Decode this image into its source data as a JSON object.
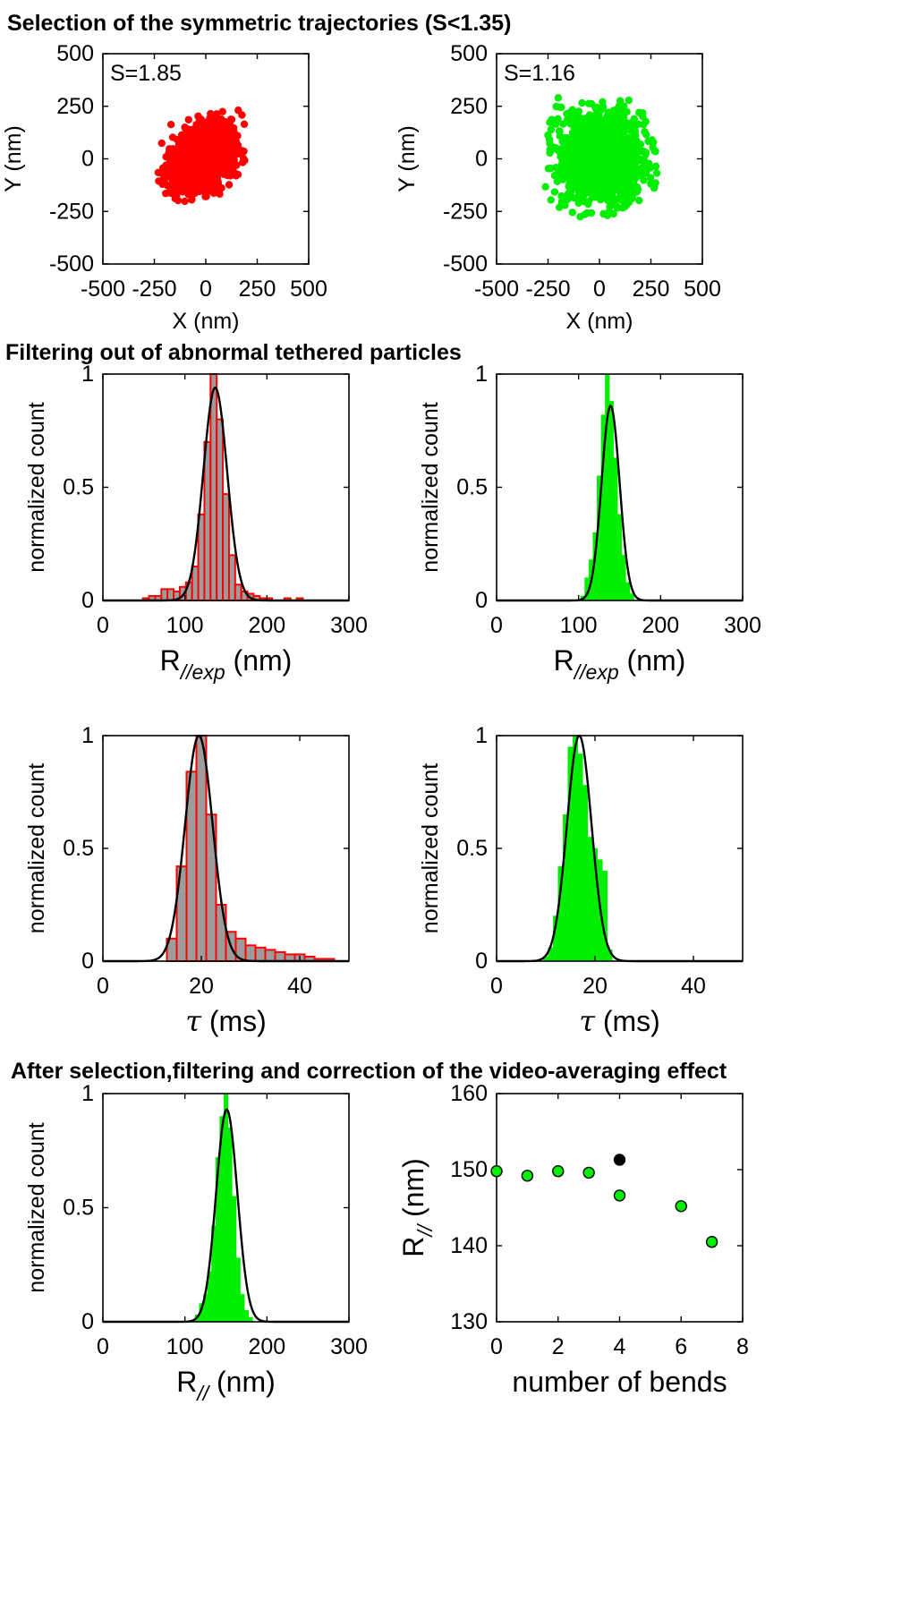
{
  "sections": {
    "s1": "Selection of the symmetric trajectories (S<1.35)",
    "s2": "Filtering out of abnormal tethered particles",
    "s3": "After selection,filtering and correction of the video-averaging effect"
  },
  "colors": {
    "red": "#ff0000",
    "green": "#00ee00",
    "gray": "#9c9c9c",
    "black": "#000000"
  },
  "chart_data": [
    {
      "id": "scatter_red",
      "type": "scatter",
      "annotation": "S=1.85",
      "xlabel": "X (nm)",
      "ylabel": "Y (nm)",
      "xlim": [
        -500,
        500
      ],
      "ylim": [
        -500,
        500
      ],
      "xticks": [
        -500,
        -250,
        0,
        250,
        500
      ],
      "yticks": [
        -500,
        -250,
        0,
        250,
        500
      ],
      "cloud": {
        "center": [
          -20,
          5
        ],
        "x_range": [
          -240,
          190
        ],
        "y_range": [
          -230,
          240
        ],
        "tilt_deg": 40,
        "color": "#ff0000"
      }
    },
    {
      "id": "scatter_green",
      "type": "scatter",
      "annotation": "S=1.16",
      "xlabel": "X (nm)",
      "ylabel": "Y (nm)",
      "xlim": [
        -500,
        500
      ],
      "ylim": [
        -500,
        500
      ],
      "xticks": [
        -500,
        -250,
        0,
        250,
        500
      ],
      "yticks": [
        -500,
        -250,
        0,
        250,
        500
      ],
      "cloud": {
        "center": [
          10,
          10
        ],
        "x_range": [
          -260,
          290
        ],
        "y_range": [
          -260,
          320
        ],
        "tilt_deg": 0,
        "color": "#00ee00"
      }
    },
    {
      "id": "hist_r_red",
      "type": "bar",
      "xlabel": "R//exp (nm)",
      "ylabel": "normalized count",
      "xlim": [
        0,
        300
      ],
      "ylim": [
        0,
        1
      ],
      "xticks": [
        0,
        100,
        200,
        300
      ],
      "yticks": [
        0,
        0.5,
        1
      ],
      "bar_style": "red-edge-gray-fill",
      "bin_width": 7.5,
      "bins": [
        [
          52.5,
          0.01
        ],
        [
          60,
          0.02
        ],
        [
          67.5,
          0.02
        ],
        [
          75,
          0.05
        ],
        [
          82.5,
          0.05
        ],
        [
          90,
          0.04
        ],
        [
          97.5,
          0.06
        ],
        [
          105,
          0.08
        ],
        [
          112.5,
          0.15
        ],
        [
          120,
          0.38
        ],
        [
          127.5,
          0.7
        ],
        [
          135,
          1.0
        ],
        [
          142.5,
          0.8
        ],
        [
          150,
          0.47
        ],
        [
          157.5,
          0.2
        ],
        [
          165,
          0.07
        ],
        [
          172.5,
          0.04
        ],
        [
          180,
          0.03
        ],
        [
          187.5,
          0.02
        ],
        [
          195,
          0.01
        ],
        [
          202.5,
          0.01
        ],
        [
          225,
          0.01
        ],
        [
          240,
          0.01
        ]
      ],
      "fit": {
        "mu": 137,
        "sigma": 14.5,
        "amp": 0.94
      }
    },
    {
      "id": "hist_r_green",
      "type": "bar",
      "xlabel": "R//exp (nm)",
      "ylabel": "normalized count",
      "xlim": [
        0,
        300
      ],
      "ylim": [
        0,
        1
      ],
      "xticks": [
        0,
        100,
        200,
        300
      ],
      "yticks": [
        0,
        0.5,
        1
      ],
      "bar_style": "green",
      "bin_width": 5,
      "bins": [
        [
          105,
          0.02
        ],
        [
          110,
          0.1
        ],
        [
          115,
          0.18
        ],
        [
          120,
          0.3
        ],
        [
          125,
          0.55
        ],
        [
          130,
          0.82
        ],
        [
          135,
          1.0
        ],
        [
          140,
          0.88
        ],
        [
          145,
          0.63
        ],
        [
          150,
          0.38
        ],
        [
          155,
          0.2
        ],
        [
          160,
          0.08
        ],
        [
          165,
          0.03
        ]
      ],
      "fit": {
        "mu": 139,
        "sigma": 11,
        "amp": 0.86
      }
    },
    {
      "id": "hist_tau_red",
      "type": "bar",
      "xlabel": "τ (ms)",
      "ylabel": "normalized count",
      "xlim": [
        0,
        50
      ],
      "ylim": [
        0,
        1
      ],
      "xticks": [
        0,
        20,
        40
      ],
      "yticks": [
        0,
        0.5,
        1
      ],
      "bar_style": "red-edge-gray-fill",
      "bin_width": 2,
      "bins": [
        [
          14,
          0.1
        ],
        [
          16,
          0.42
        ],
        [
          18,
          0.84
        ],
        [
          20,
          1.0
        ],
        [
          22,
          0.65
        ],
        [
          24,
          0.25
        ],
        [
          26,
          0.13
        ],
        [
          28,
          0.1
        ],
        [
          30,
          0.07
        ],
        [
          32,
          0.06
        ],
        [
          34,
          0.05
        ],
        [
          36,
          0.04
        ],
        [
          38,
          0.03
        ],
        [
          40,
          0.03
        ],
        [
          42,
          0.02
        ],
        [
          44,
          0.01
        ],
        [
          46,
          0.01
        ]
      ],
      "fit": {
        "mu": 19.5,
        "sigma": 2.8,
        "amp": 1.0
      }
    },
    {
      "id": "hist_tau_green",
      "type": "bar",
      "xlabel": "τ (ms)",
      "ylabel": "normalized count",
      "xlim": [
        0,
        50
      ],
      "ylim": [
        0,
        1
      ],
      "xticks": [
        0,
        20,
        40
      ],
      "yticks": [
        0,
        0.5,
        1
      ],
      "bar_style": "green",
      "bin_width": 1,
      "bins": [
        [
          10,
          0.02
        ],
        [
          11,
          0.06
        ],
        [
          12,
          0.2
        ],
        [
          13,
          0.42
        ],
        [
          14,
          0.65
        ],
        [
          15,
          0.95
        ],
        [
          16,
          1.0
        ],
        [
          17,
          0.92
        ],
        [
          18,
          0.78
        ],
        [
          19,
          0.55
        ],
        [
          20,
          0.5
        ],
        [
          21,
          0.45
        ],
        [
          22,
          0.4
        ],
        [
          23,
          0.05
        ]
      ],
      "fit": {
        "mu": 16.8,
        "sigma": 2.5,
        "amp": 1.0
      }
    },
    {
      "id": "hist_r_final",
      "type": "bar",
      "xlabel": "R// (nm)",
      "ylabel": "normalized count",
      "xlim": [
        0,
        300
      ],
      "ylim": [
        0,
        1
      ],
      "xticks": [
        0,
        100,
        200,
        300
      ],
      "yticks": [
        0,
        0.5,
        1
      ],
      "bar_style": "green",
      "bin_width": 5,
      "bins": [
        [
          115,
          0.03
        ],
        [
          120,
          0.08
        ],
        [
          125,
          0.12
        ],
        [
          130,
          0.22
        ],
        [
          135,
          0.42
        ],
        [
          140,
          0.72
        ],
        [
          145,
          0.9
        ],
        [
          150,
          1.0
        ],
        [
          155,
          0.85
        ],
        [
          160,
          0.55
        ],
        [
          165,
          0.28
        ],
        [
          170,
          0.12
        ],
        [
          175,
          0.05
        ],
        [
          180,
          0.02
        ]
      ],
      "fit": {
        "mu": 151,
        "sigma": 13,
        "amp": 0.93
      }
    },
    {
      "id": "rpar_vs_bends",
      "type": "scatter",
      "xlabel": "number of bends",
      "ylabel": "R// (nm)",
      "xlim": [
        0,
        8
      ],
      "ylim": [
        130,
        160
      ],
      "xticks": [
        0,
        2,
        4,
        6,
        8
      ],
      "yticks": [
        130,
        140,
        150,
        160
      ],
      "series": [
        {
          "color": "#00ee00",
          "x": [
            0,
            1,
            2,
            3,
            4,
            6,
            7
          ],
          "y": [
            149.8,
            149.2,
            149.8,
            149.6,
            146.6,
            145.2,
            140.5
          ]
        },
        {
          "color": "#000000",
          "x": [
            4
          ],
          "y": [
            151.3
          ]
        }
      ]
    }
  ]
}
